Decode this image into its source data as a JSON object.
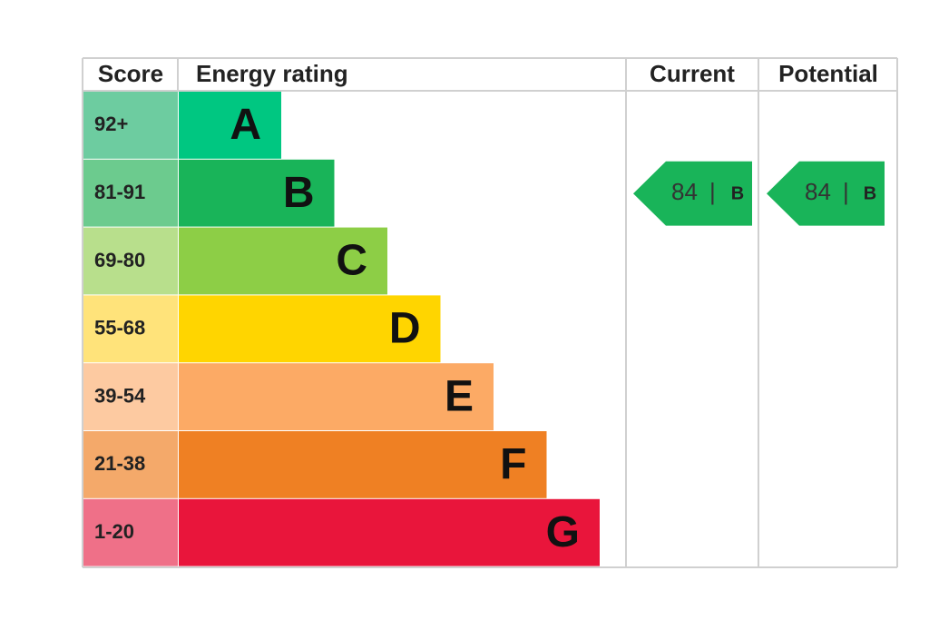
{
  "header": {
    "score": "Score",
    "rating": "Energy rating",
    "current": "Current",
    "potential": "Potential"
  },
  "bands": [
    {
      "score": "92+",
      "letter": "A",
      "color": "#00c781",
      "score_color": "#6dcca0"
    },
    {
      "score": "81-91",
      "letter": "B",
      "color": "#19b459",
      "score_color": "#6ccb8e"
    },
    {
      "score": "69-80",
      "letter": "C",
      "color": "#8dce46",
      "score_color": "#b8df8c"
    },
    {
      "score": "55-68",
      "letter": "D",
      "color": "#ffd500",
      "score_color": "#ffe37a"
    },
    {
      "score": "39-54",
      "letter": "E",
      "color": "#fcaa65",
      "score_color": "#fdcaa1"
    },
    {
      "score": "21-38",
      "letter": "F",
      "color": "#ef8023",
      "score_color": "#f4a96a"
    },
    {
      "score": "1-20",
      "letter": "G",
      "color": "#e9153b",
      "score_color": "#ef7088"
    }
  ],
  "current": {
    "value": 84,
    "separator": "|",
    "letter": "B",
    "color": "#19b459"
  },
  "potential": {
    "value": 84,
    "separator": "|",
    "letter": "B",
    "color": "#19b459"
  }
}
